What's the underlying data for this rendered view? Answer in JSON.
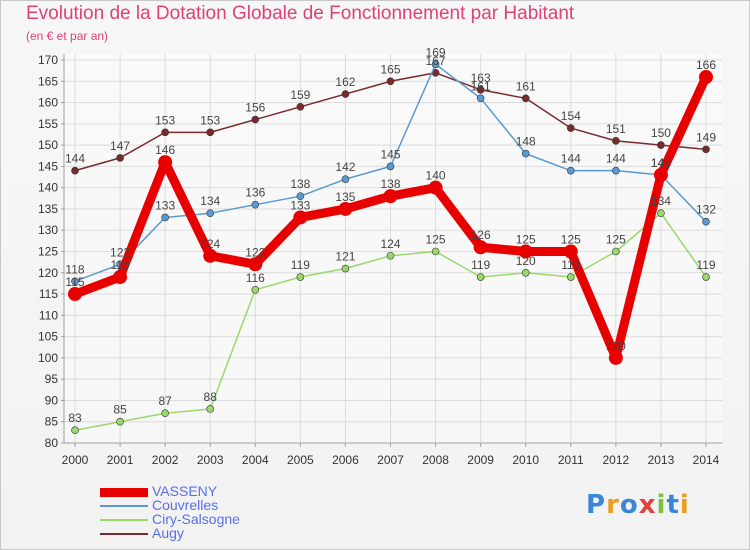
{
  "title": "Evolution de la Dotation Globale de Fonctionnement par Habitant",
  "subtitle": "(en € et par an)",
  "logo": {
    "text": "Proxiti",
    "letter_colors": [
      "#3a86d8",
      "#e8a020",
      "#3a86d8",
      "#e04040",
      "#7ac143",
      "#3a86d8",
      "#e8a020"
    ]
  },
  "colors": {
    "title": "#e0407a",
    "axis": "#a0a0a0",
    "grid": "#dcdcdc",
    "tick_text": "#333333",
    "label_text": "#444444",
    "legend_text": "#5a6ee6"
  },
  "chart_data": {
    "type": "line",
    "title": "Evolution de la Dotation Globale de Fonctionnement par Habitant",
    "subtitle": "(en € et par an)",
    "x": [
      "2000",
      "2001",
      "2002",
      "2003",
      "2004",
      "2005",
      "2006",
      "2007",
      "2008",
      "2009",
      "2010",
      "2011",
      "2012",
      "2013",
      "2014"
    ],
    "ylim": [
      80,
      170
    ],
    "yticks": [
      80,
      85,
      90,
      95,
      100,
      105,
      110,
      115,
      120,
      125,
      130,
      135,
      140,
      145,
      150,
      155,
      160,
      165,
      170
    ],
    "grid": true,
    "legend_position": "bottom-left",
    "series": [
      {
        "name": "Augy",
        "color": "#7a2a2a",
        "emphasis": false,
        "values": [
          144,
          147,
          153,
          153,
          156,
          159,
          162,
          165,
          167,
          163,
          161,
          154,
          151,
          150,
          149
        ],
        "labels": [
          "144",
          "147",
          "153",
          "153",
          "156",
          "159",
          "162",
          "165",
          "167",
          "163",
          "161",
          "154",
          "151",
          "150",
          "149"
        ]
      },
      {
        "name": "Ciry-Salsogne",
        "color": "#9ad86a",
        "emphasis": false,
        "values": [
          83,
          85,
          87,
          88,
          116,
          119,
          121,
          124,
          125,
          119,
          120,
          119,
          125,
          134,
          119
        ],
        "labels": [
          "83",
          "85",
          "87",
          "88",
          "116",
          "119",
          "121",
          "124",
          "125",
          "119",
          "120",
          "119",
          "125",
          "134",
          "119"
        ]
      },
      {
        "name": "Couvrelles",
        "color": "#5a9ad0",
        "emphasis": false,
        "values": [
          118,
          122,
          133,
          134,
          136,
          138,
          142,
          145,
          169,
          161,
          148,
          144,
          144,
          143,
          132
        ],
        "labels": [
          "118",
          "122",
          "133",
          "134",
          "136",
          "138",
          "142",
          "145",
          "169",
          "161",
          "148",
          "144",
          "144",
          "143",
          "132"
        ]
      },
      {
        "name": "VASSENY",
        "color": "#e80000",
        "emphasis": true,
        "values": [
          115,
          119,
          146,
          124,
          122,
          133,
          135,
          138,
          140,
          126,
          125,
          125,
          100,
          143,
          166
        ],
        "labels": [
          "115",
          "119",
          "146",
          "124",
          "122",
          "133",
          "135",
          "138",
          "140",
          "126",
          "125",
          "125",
          "100",
          "143",
          "166"
        ]
      }
    ],
    "legend": [
      "VASSENY",
      "Couvrelles",
      "Ciry-Salsogne",
      "Augy"
    ]
  }
}
